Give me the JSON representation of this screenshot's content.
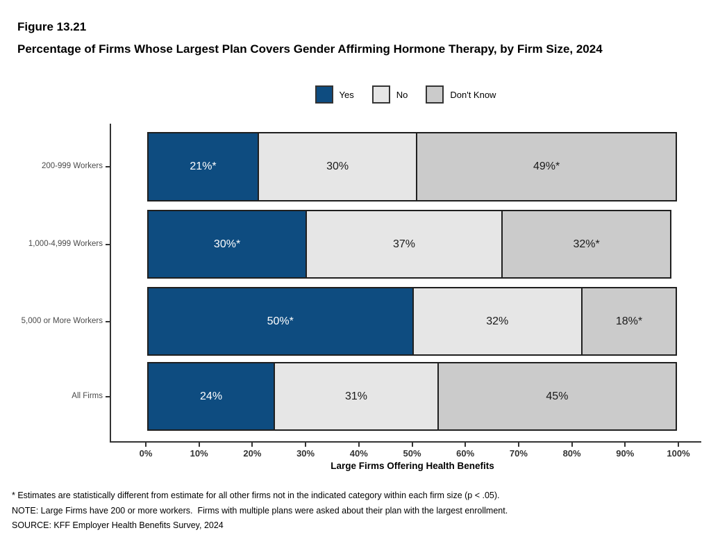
{
  "figure": {
    "label": "Figure 13.21",
    "title": "Percentage of Firms Whose Largest Plan Covers Gender Affirming Hormone Therapy, by Firm Size, 2024"
  },
  "legend": {
    "items": [
      {
        "label": "Yes",
        "color": "#0E4C80"
      },
      {
        "label": "No",
        "color": "#E6E6E6"
      },
      {
        "label": "Don't Know",
        "color": "#CBCBCB"
      }
    ]
  },
  "chart_data": {
    "type": "bar",
    "variant": "horizontal-stacked",
    "title": "Percentage of Firms Whose Largest Plan Covers Gender Affirming Hormone Therapy, by Firm Size, 2024",
    "categories": [
      "200-999 Workers",
      "1,000-4,999 Workers",
      "5,000 or More Workers",
      "All Firms"
    ],
    "series": [
      {
        "name": "Yes",
        "color": "#0E4C80",
        "label_color": "#FFFFFF",
        "values": [
          21,
          30,
          50,
          24
        ],
        "data_labels": [
          "21%*",
          "30%*",
          "50%*",
          "24%"
        ]
      },
      {
        "name": "No",
        "color": "#E6E6E6",
        "label_color": "#1A1A1A",
        "values": [
          30,
          37,
          32,
          31
        ],
        "data_labels": [
          "30%",
          "37%",
          "32%",
          "31%"
        ]
      },
      {
        "name": "Don't Know",
        "color": "#CBCBCB",
        "label_color": "#1A1A1A",
        "values": [
          49,
          32,
          18,
          45
        ],
        "data_labels": [
          "49%*",
          "32%*",
          "18%*",
          "45%"
        ]
      }
    ],
    "xlabel": "Large Firms Offering Health Benefits",
    "x_ticks": [
      "0%",
      "10%",
      "20%",
      "30%",
      "40%",
      "50%",
      "60%",
      "70%",
      "80%",
      "90%",
      "100%"
    ],
    "xlim": [
      0,
      100
    ],
    "grid": false,
    "legend_position": "top-center"
  },
  "footnotes": [
    "* Estimates are statistically different from estimate for all other firms not in the indicated category within each firm size (p < .05).",
    "NOTE: Large Firms have 200 or more workers.  Firms with multiple plans were asked about their plan with the largest enrollment.",
    "SOURCE: KFF Employer Health Benefits Survey, 2024"
  ]
}
